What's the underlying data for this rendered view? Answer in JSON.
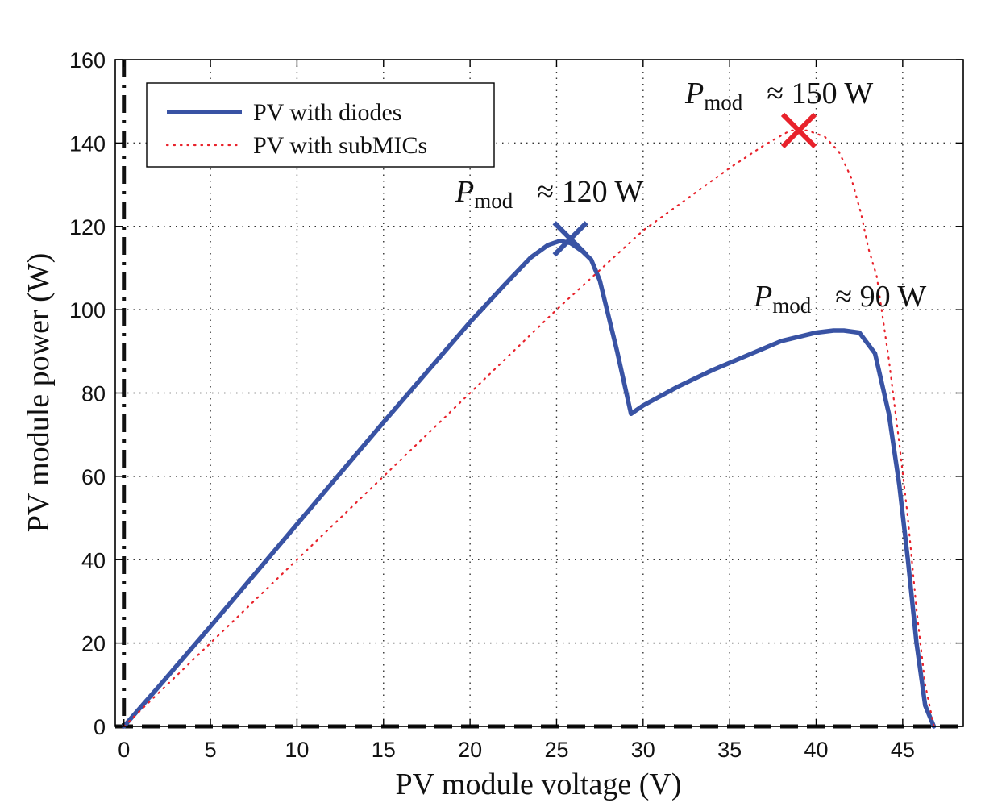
{
  "chart_data": {
    "type": "line",
    "xlabel": "PV module voltage (V)",
    "ylabel": "PV module power (W)",
    "xlim": [
      -0.5,
      48.5
    ],
    "ylim": [
      0,
      160
    ],
    "xticks": [
      0,
      5,
      10,
      15,
      20,
      25,
      30,
      35,
      40,
      45
    ],
    "yticks": [
      0,
      20,
      40,
      60,
      80,
      100,
      120,
      140,
      160
    ],
    "grid": true,
    "legend_position": "top-left",
    "colors": {
      "diodes": "#3953a4",
      "submics": "#e8222b"
    },
    "series": [
      {
        "name": "PV with diodes",
        "style": "solid",
        "x": [
          0,
          2,
          5,
          10,
          15,
          20,
          22,
          23.5,
          24.5,
          25.2,
          25.8,
          26.5,
          27,
          27.5,
          28.5,
          29.3,
          30,
          32,
          34,
          36,
          38,
          40,
          41,
          41.6,
          42.5,
          43.4,
          44.2,
          44.8,
          45.3,
          45.8,
          46.3,
          46.8
        ],
        "y": [
          0,
          9.5,
          24,
          48.5,
          73,
          97,
          106,
          112.5,
          115.5,
          116.5,
          116,
          114,
          112,
          107,
          90,
          75,
          77,
          81.5,
          85.5,
          89,
          92.5,
          94.5,
          95,
          95,
          94.5,
          89.5,
          75,
          58,
          40,
          20,
          5,
          0
        ]
      },
      {
        "name": "PV with subMICs",
        "style": "dotted",
        "x": [
          0,
          5,
          10,
          15,
          20,
          25,
          30,
          35,
          37,
          38.5,
          39.5,
          40.5,
          41.3,
          42,
          42.6,
          43,
          43.5,
          44.2,
          44.8,
          45.3,
          45.8,
          46.3,
          46.8
        ],
        "y": [
          0,
          20,
          40,
          60,
          80,
          100,
          119,
          134,
          139.5,
          143,
          143,
          141.5,
          138,
          132,
          123,
          115,
          108,
          88,
          68,
          50,
          28,
          10,
          0
        ]
      }
    ],
    "annotations": [
      {
        "symbol": "P",
        "subscript": "mod",
        "text": "≈ 120 W",
        "x": 25.8,
        "y": 117,
        "marker": "x",
        "color": "#3953a4"
      },
      {
        "symbol": "P",
        "subscript": "mod",
        "text": "≈ 150 W",
        "x": 39,
        "y": 143,
        "marker": "x",
        "color": "#e8222b"
      },
      {
        "symbol": "P",
        "subscript": "mod",
        "text": "≈ 90 W",
        "x": null,
        "y": null,
        "marker": "none",
        "color": "#111111"
      }
    ]
  }
}
